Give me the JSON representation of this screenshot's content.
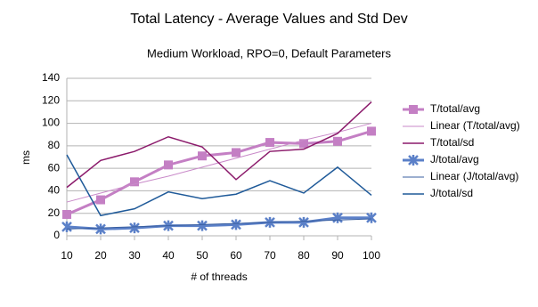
{
  "chart_data": {
    "type": "line",
    "title": "Total Latency - Average Values and Std Dev",
    "subtitle": "Medium Workload, RPO=0, Default Parameters",
    "x_label": "# of threads",
    "y_label": "ms",
    "x": [
      10,
      20,
      30,
      40,
      50,
      60,
      70,
      80,
      90,
      100
    ],
    "xlim": [
      10,
      100
    ],
    "xticks": [
      10,
      20,
      30,
      40,
      50,
      60,
      70,
      80,
      90,
      100
    ],
    "ylim": [
      0,
      140
    ],
    "yticks": [
      0,
      20,
      40,
      60,
      80,
      100,
      120,
      140
    ],
    "grid": true,
    "legend": "right",
    "series": [
      {
        "name": "T/total/avg",
        "color": "#c47fc4",
        "width": 3,
        "marker": "square",
        "values": [
          19,
          32,
          48,
          63,
          71,
          74,
          83,
          82,
          84,
          93
        ]
      },
      {
        "name": "Linear (T/total/avg)",
        "color": "#c98ac9",
        "width": 1,
        "marker": "none",
        "values": [
          30,
          38,
          46,
          53,
          61,
          69,
          77,
          85,
          92,
          100
        ]
      },
      {
        "name": "T/total/sd",
        "color": "#8b1a6b",
        "width": 1.5,
        "marker": "none",
        "values": [
          43,
          67,
          75,
          88,
          79,
          50,
          75,
          77,
          91,
          119
        ]
      },
      {
        "name": "J/total/avg",
        "color": "#5b80c8",
        "width": 3,
        "marker": "x",
        "values": [
          8,
          6,
          7,
          9,
          9,
          10,
          12,
          12,
          16,
          16
        ]
      },
      {
        "name": "Linear (J/total/avg)",
        "color": "#3a5fa0",
        "width": 1,
        "marker": "none",
        "values": [
          6,
          7,
          8,
          9,
          10,
          11,
          12,
          13,
          14,
          15
        ]
      },
      {
        "name": "J/total/sd",
        "color": "#1f5a99",
        "width": 1.5,
        "marker": "none",
        "values": [
          72,
          18,
          24,
          39,
          33,
          37,
          49,
          38,
          61,
          36
        ]
      }
    ]
  }
}
